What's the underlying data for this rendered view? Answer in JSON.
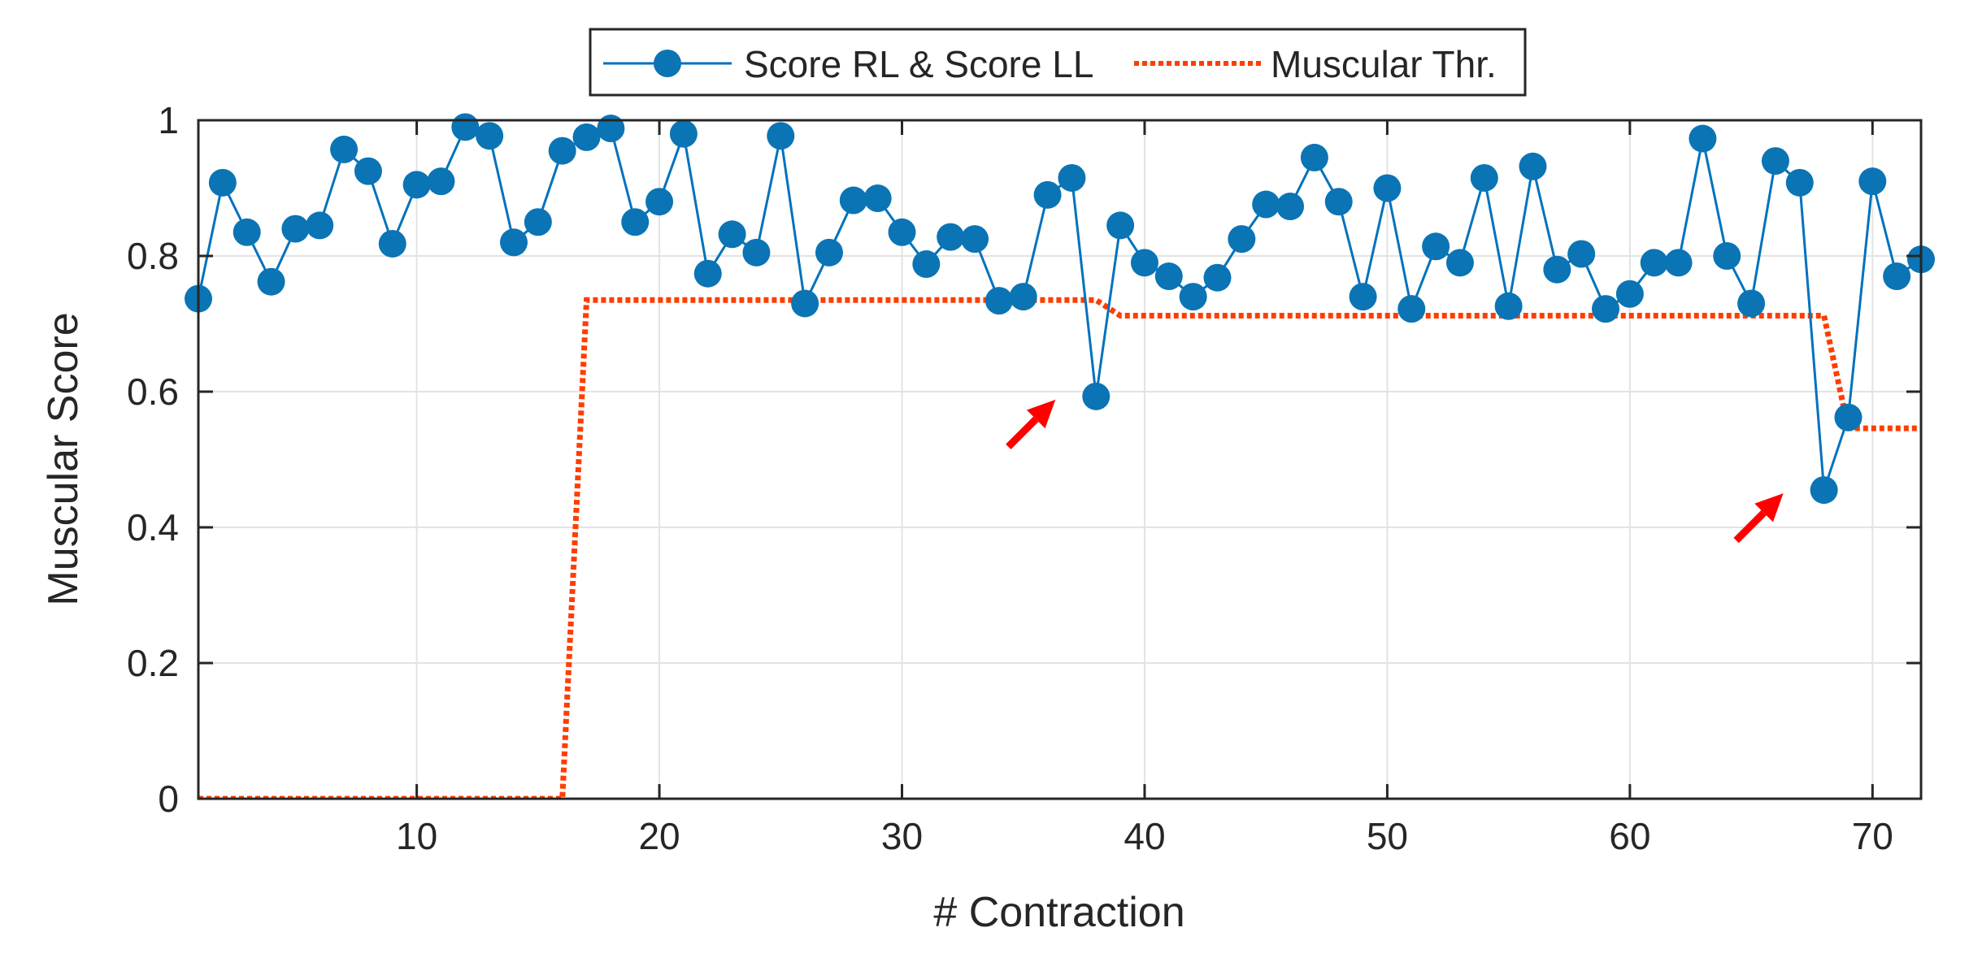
{
  "chart_data": {
    "type": "line",
    "xlabel": "# Contraction",
    "ylabel": "Muscular Score",
    "xlim": [
      1,
      72
    ],
    "ylim": [
      0,
      1
    ],
    "xticks": [
      10,
      20,
      30,
      40,
      50,
      60,
      70
    ],
    "yticks": [
      0,
      0.2,
      0.4,
      0.6,
      0.8,
      1
    ],
    "xtick_labels": [
      "10",
      "20",
      "30",
      "40",
      "50",
      "60",
      "70"
    ],
    "ytick_labels": [
      "0",
      "0.2",
      "0.4",
      "0.6",
      "0.8",
      "1"
    ],
    "grid": true,
    "legend_position": "top-center",
    "series": [
      {
        "name": "Score RL & Score LL",
        "style": "line-with-markers",
        "color": "#0072BD",
        "marker_color": "#0B74B4",
        "x": [
          1,
          2,
          3,
          4,
          5,
          6,
          7,
          8,
          9,
          10,
          11,
          12,
          13,
          14,
          15,
          16,
          17,
          18,
          19,
          20,
          21,
          22,
          23,
          24,
          25,
          26,
          27,
          28,
          29,
          30,
          31,
          32,
          33,
          34,
          35,
          36,
          37,
          38,
          39,
          40,
          41,
          42,
          43,
          44,
          45,
          46,
          47,
          48,
          49,
          50,
          51,
          52,
          53,
          54,
          55,
          56,
          57,
          58,
          59,
          60,
          61,
          62,
          63,
          64,
          65,
          66,
          67,
          68,
          69,
          70,
          71,
          72
        ],
        "values": [
          0.737,
          0.908,
          0.835,
          0.762,
          0.84,
          0.845,
          0.957,
          0.925,
          0.818,
          0.905,
          0.91,
          0.99,
          0.977,
          0.82,
          0.85,
          0.955,
          0.975,
          0.988,
          0.85,
          0.88,
          0.98,
          0.774,
          0.832,
          0.805,
          0.977,
          0.73,
          0.805,
          0.882,
          0.885,
          0.835,
          0.788,
          0.828,
          0.825,
          0.734,
          0.74,
          0.89,
          0.915,
          0.593,
          0.845,
          0.79,
          0.77,
          0.74,
          0.768,
          0.825,
          0.876,
          0.873,
          0.945,
          0.88,
          0.74,
          0.9,
          0.722,
          0.814,
          0.79,
          0.915,
          0.726,
          0.932,
          0.78,
          0.803,
          0.722,
          0.744,
          0.79,
          0.79,
          0.973,
          0.8,
          0.73,
          0.94,
          0.908,
          0.455,
          0.562,
          0.91,
          0.77,
          0.795
        ]
      },
      {
        "name": "Muscular Thr.",
        "style": "dotted",
        "color": "#FF3D00",
        "x": [
          1,
          16,
          17,
          38,
          39,
          68,
          69,
          72
        ],
        "values": [
          0,
          0,
          0.735,
          0.735,
          0.712,
          0.712,
          0.546,
          0.546
        ]
      }
    ],
    "annotations": [
      {
        "type": "arrow",
        "color": "#FF0000",
        "points_to_x": 38,
        "points_to_y": 0.593
      },
      {
        "type": "arrow",
        "color": "#FF0000",
        "points_to_x": 68,
        "points_to_y": 0.455
      }
    ]
  }
}
